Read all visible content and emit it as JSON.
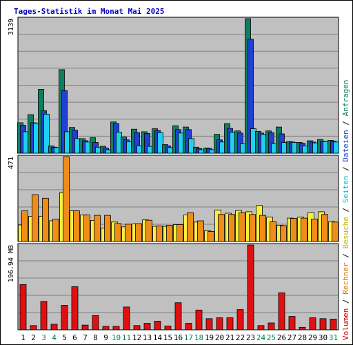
{
  "chart_data": {
    "type": "bar",
    "title": "Tages-Statistik im Monat Mai 2025",
    "categories": [
      "1",
      "2",
      "3",
      "4",
      "5",
      "6",
      "7",
      "8",
      "9",
      "10",
      "11",
      "12",
      "13",
      "14",
      "15",
      "16",
      "17",
      "18",
      "19",
      "20",
      "21",
      "22",
      "23",
      "24",
      "25",
      "26",
      "27",
      "28",
      "29",
      "30",
      "31"
    ],
    "weekend_days": [
      "3",
      "4",
      "10",
      "11",
      "17",
      "18",
      "24",
      "25",
      "31"
    ],
    "panels": [
      {
        "name": "requests",
        "max_label": "3139",
        "ylim": [
          0,
          3139
        ],
        "series": [
          {
            "name": "Anfragen",
            "color": "#0b8060",
            "values": [
              710,
              900,
              1490,
              170,
              1950,
              600,
              340,
              360,
              160,
              730,
              380,
              560,
              500,
              570,
              200,
              640,
              610,
              140,
              120,
              440,
              690,
              520,
              3139,
              510,
              520,
              610,
              270,
              250,
              290,
              320,
              300
            ]
          },
          {
            "name": "Dateien",
            "color": "#2040d0",
            "values": [
              650,
              710,
              990,
              140,
              1460,
              540,
              290,
              250,
              120,
              690,
              310,
              480,
              460,
              530,
              170,
              550,
              550,
              110,
              110,
              310,
              580,
              470,
              2660,
              470,
              480,
              450,
              260,
              230,
              260,
              280,
              280
            ]
          },
          {
            "name": "Seiten",
            "color": "#20d0f0",
            "values": [
              500,
              700,
              910,
              130,
              500,
              340,
              260,
              140,
              80,
              490,
              270,
              170,
              160,
              480,
              130,
              470,
              340,
              80,
              80,
              260,
              490,
              220,
              570,
              440,
              220,
              250,
              250,
              170,
              240,
              270,
              260
            ]
          }
        ]
      },
      {
        "name": "visits",
        "max_label": "471",
        "ylim": [
          0,
          471
        ],
        "series": [
          {
            "name": "Besuche",
            "color": "#f8f040",
            "values": [
              92,
              140,
              139,
              115,
              272,
              170,
              148,
              117,
              74,
              108,
              81,
              98,
              120,
              84,
              84,
              94,
              148,
              108,
              60,
              175,
              157,
              172,
              165,
              200,
              135,
              90,
              130,
              135,
              160,
              165,
              110
            ]
          },
          {
            "name": "Rechner",
            "color": "#f08c18",
            "values": [
              170,
              260,
              240,
              125,
              471,
              170,
              147,
              145,
              145,
              100,
              96,
              99,
              118,
              87,
              90,
              94,
              160,
              115,
              56,
              150,
              150,
              160,
              150,
              145,
              110,
              88,
              128,
              130,
              125,
              150,
              108
            ]
          }
        ]
      },
      {
        "name": "volume",
        "max_label": "196.94 MB",
        "ylim": [
          0,
          196.94
        ],
        "series": [
          {
            "name": "Volumen",
            "color": "#e01010",
            "values": [
              105,
              10,
              66,
              13,
              57,
              100,
              11,
              33,
              8,
              8,
              53,
              10,
              15,
              20,
              9,
              63,
              15,
              46,
              26,
              28,
              28,
              47,
              196.94,
              10,
              16,
              86,
              31,
              6,
              28,
              26,
              25
            ]
          }
        ]
      }
    ],
    "right_legend": [
      {
        "text": "Volumen",
        "color": "#cc0000"
      },
      {
        "text": "Rechner",
        "color": "#e07800"
      },
      {
        "text": "Besuche",
        "color": "#c8b400"
      },
      {
        "text": "Seiten",
        "color": "#00c0e0"
      },
      {
        "text": "Dateien",
        "color": "#2040d0"
      },
      {
        "text": "Anfragen",
        "color": "#0b8060"
      }
    ],
    "legend_separator": "/",
    "colors": {
      "plot_bg": "#c0c0c0",
      "grid": "#808080",
      "title": "#0000c0",
      "weekday": "#000000",
      "weekend": "#008040"
    }
  }
}
